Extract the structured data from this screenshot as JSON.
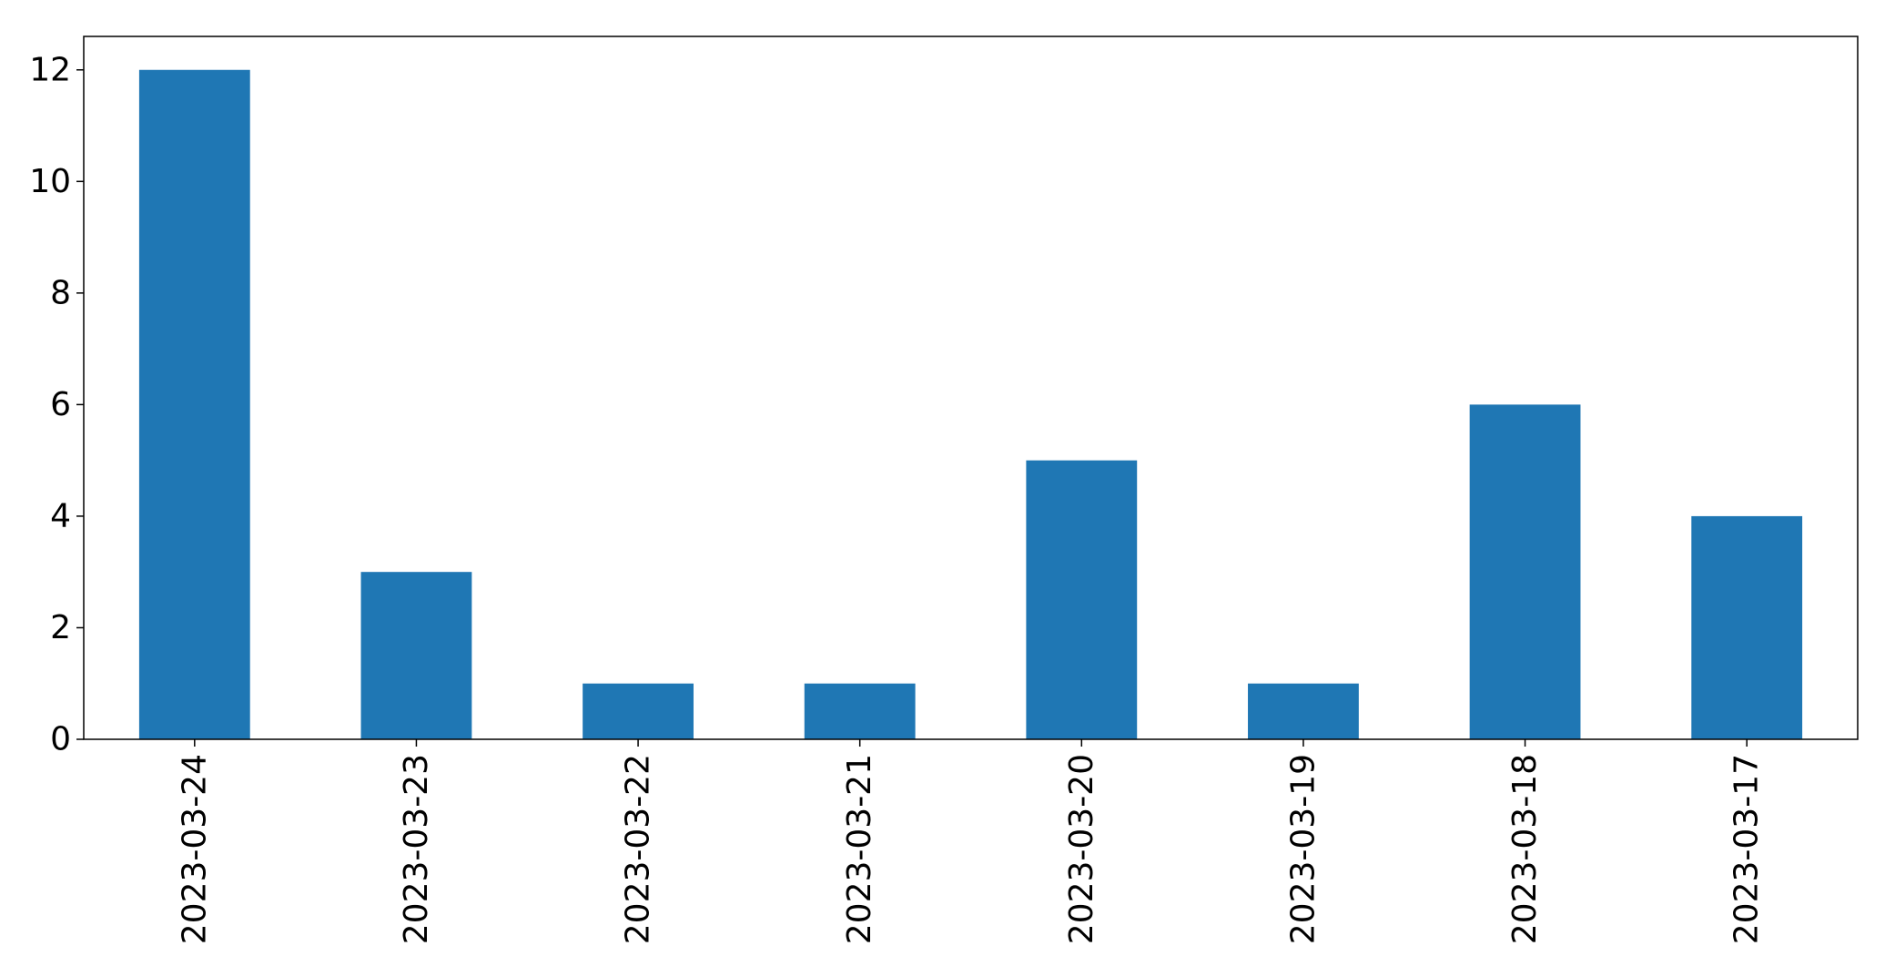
{
  "chart_data": {
    "type": "bar",
    "categories": [
      "2023-03-24",
      "2023-03-23",
      "2023-03-22",
      "2023-03-21",
      "2023-03-20",
      "2023-03-19",
      "2023-03-18",
      "2023-03-17"
    ],
    "values": [
      12,
      3,
      1,
      1,
      5,
      1,
      6,
      4
    ],
    "title": "",
    "xlabel": "",
    "ylabel": "",
    "ylim": [
      0,
      12.6
    ],
    "yticks": [
      0,
      2,
      4,
      6,
      8,
      10,
      12
    ],
    "grid": false,
    "bar_color": "#1f77b4"
  }
}
